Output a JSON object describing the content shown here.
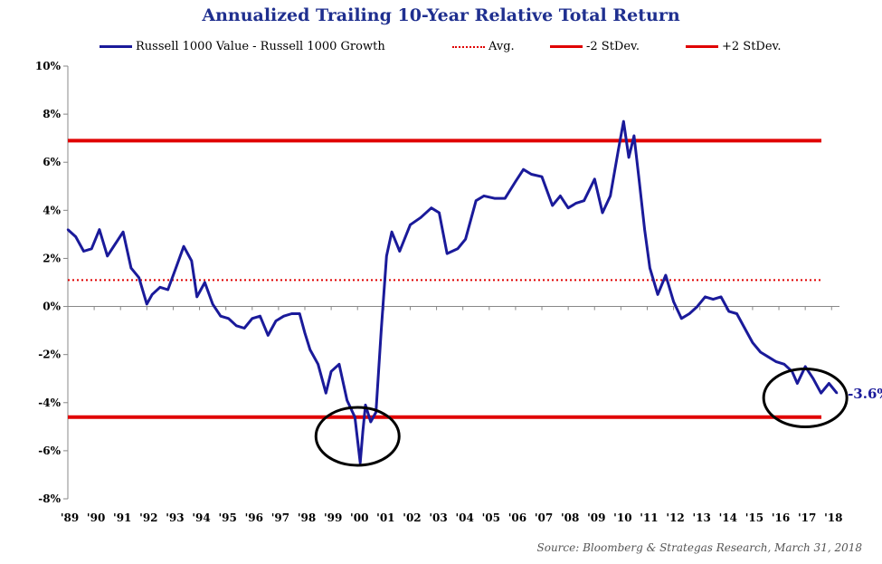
{
  "chart_data": {
    "type": "line",
    "title": "Annualized Trailing 10-Year Relative Total Return",
    "xlabel": "",
    "ylabel": "",
    "ylim": [
      -8,
      10
    ],
    "xlim": [
      1989,
      2018.3
    ],
    "grid": false,
    "legend_position": "top",
    "x_tick_labels": [
      "'89",
      "'90",
      "'91",
      "'92",
      "'93",
      "'94",
      "'95",
      "'96",
      "'97",
      "'98",
      "'99",
      "'00",
      "'01",
      "'02",
      "'03",
      "'04",
      "'05",
      "'06",
      "'07",
      "'08",
      "'09",
      "'10",
      "'11",
      "'12",
      "'13",
      "'14",
      "'15",
      "'16",
      "'17",
      "'18"
    ],
    "y_tick_labels": [
      "10%",
      "8%",
      "6%",
      "4%",
      "2%",
      "0%",
      "-2%",
      "-4%",
      "-6%",
      "-8%"
    ],
    "y_ticks": [
      10,
      8,
      6,
      4,
      2,
      0,
      -2,
      -4,
      -6,
      -8
    ],
    "series": [
      {
        "name": "Russell 1000 Value - Russell 1000 Growth",
        "color": "#1a1a9a",
        "style": "solid",
        "x": [
          1989.0,
          1989.3,
          1989.6,
          1989.9,
          1990.2,
          1990.5,
          1990.8,
          1991.1,
          1991.4,
          1991.7,
          1992.0,
          1992.2,
          1992.5,
          1992.8,
          1993.1,
          1993.4,
          1993.7,
          1993.9,
          1994.2,
          1994.5,
          1994.8,
          1995.1,
          1995.4,
          1995.7,
          1996.0,
          1996.3,
          1996.6,
          1996.9,
          1997.2,
          1997.5,
          1997.8,
          1998.0,
          1998.2,
          1998.5,
          1998.8,
          1999.0,
          1999.3,
          1999.6,
          1999.9,
          2000.1,
          2000.2,
          2000.3,
          2000.5,
          2000.7,
          2000.9,
          2001.1,
          2001.3,
          2001.6,
          2002.0,
          2002.4,
          2002.8,
          2003.1,
          2003.4,
          2003.8,
          2004.1,
          2004.5,
          2004.8,
          2005.2,
          2005.6,
          2006.0,
          2006.3,
          2006.6,
          2007.0,
          2007.4,
          2007.7,
          2008.0,
          2008.3,
          2008.6,
          2009.0,
          2009.3,
          2009.6,
          2009.9,
          2010.1,
          2010.3,
          2010.5,
          2010.7,
          2010.9,
          2011.1,
          2011.4,
          2011.7,
          2012.0,
          2012.3,
          2012.6,
          2012.9,
          2013.2,
          2013.5,
          2013.8,
          2014.1,
          2014.4,
          2014.7,
          2015.0,
          2015.3,
          2015.6,
          2015.9,
          2016.2,
          2016.5,
          2016.7,
          2017.0,
          2017.3,
          2017.6,
          2017.9,
          2018.2
        ],
        "y": [
          3.2,
          2.9,
          2.3,
          2.4,
          3.2,
          2.1,
          2.6,
          3.1,
          1.6,
          1.2,
          0.1,
          0.5,
          0.8,
          0.7,
          1.6,
          2.5,
          1.9,
          0.4,
          1.0,
          0.1,
          -0.4,
          -0.5,
          -0.8,
          -0.9,
          -0.5,
          -0.4,
          -1.2,
          -0.6,
          -0.4,
          -0.3,
          -0.3,
          -1.1,
          -1.8,
          -2.4,
          -3.6,
          -2.7,
          -2.4,
          -3.9,
          -4.6,
          -6.5,
          -5.2,
          -4.1,
          -4.8,
          -4.4,
          -1.0,
          2.1,
          3.1,
          2.3,
          3.4,
          3.7,
          4.1,
          3.9,
          2.2,
          2.4,
          2.8,
          4.4,
          4.6,
          4.5,
          4.5,
          5.2,
          5.7,
          5.5,
          5.4,
          4.2,
          4.6,
          4.1,
          4.3,
          4.4,
          5.3,
          3.9,
          4.6,
          6.5,
          7.7,
          6.2,
          7.1,
          5.2,
          3.2,
          1.6,
          0.5,
          1.3,
          0.2,
          -0.5,
          -0.3,
          0.0,
          0.4,
          0.3,
          0.4,
          -0.2,
          -0.3,
          -0.9,
          -1.5,
          -1.9,
          -2.1,
          -2.3,
          -2.4,
          -2.7,
          -3.2,
          -2.5,
          -3.0,
          -3.6,
          -3.2,
          -3.6
        ]
      },
      {
        "name": "Avg.",
        "color": "#e00000",
        "style": "dotted",
        "value": 1.1
      },
      {
        "name": "-2 StDev.",
        "color": "#e00000",
        "style": "solid",
        "value": -4.6
      },
      {
        "name": "+2 StDev.",
        "color": "#e00000",
        "style": "solid",
        "value": 6.9
      }
    ],
    "annotations": [
      {
        "text": "-3.6%",
        "x": 2018.2,
        "y": -3.6
      },
      {
        "type": "circle",
        "x": 2000.0,
        "y": -5.4
      },
      {
        "type": "circle",
        "x": 2017.0,
        "y": -3.8
      }
    ]
  },
  "source": "Source: Bloomberg & Strategas Research, March 31, 2018"
}
